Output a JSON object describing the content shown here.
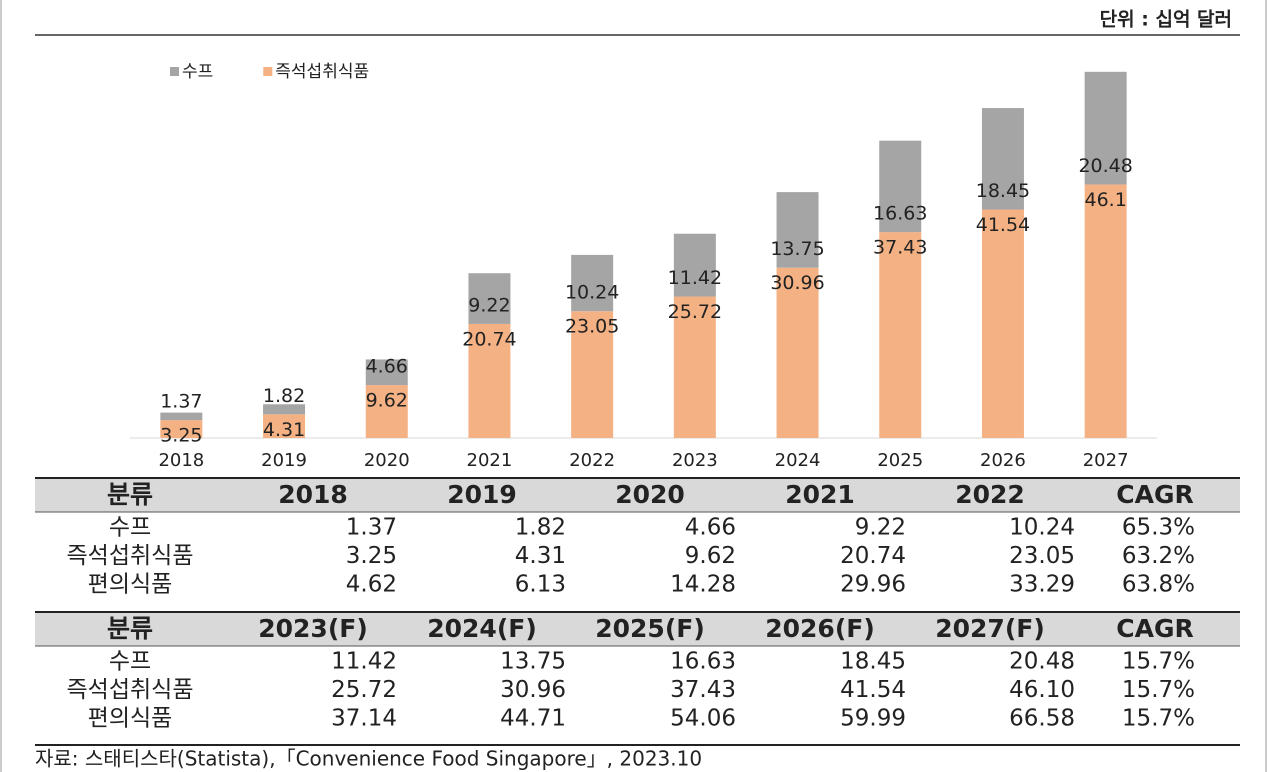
{
  "unit": "단위 : 십억 달러",
  "chart_data": {
    "type": "bar",
    "stacked": true,
    "categories": [
      "2018",
      "2019",
      "2020",
      "2021",
      "2022",
      "2023",
      "2024",
      "2025",
      "2026",
      "2027"
    ],
    "series": [
      {
        "name": "수프",
        "color": "#a5a5a5",
        "values": [
          1.37,
          1.82,
          4.66,
          9.22,
          10.24,
          11.42,
          13.75,
          16.63,
          18.45,
          20.48
        ]
      },
      {
        "name": "즉석섭취식품",
        "color": "#f4b183",
        "values": [
          3.25,
          4.31,
          9.62,
          20.74,
          23.05,
          25.72,
          30.96,
          37.43,
          41.54,
          46.1
        ]
      }
    ],
    "ylim": [
      0,
      70
    ],
    "legend": "top-left"
  },
  "table": {
    "sections": [
      {
        "header": [
          "분류",
          "2018",
          "2019",
          "2020",
          "2021",
          "2022",
          "CAGR"
        ],
        "rows": [
          [
            "수프",
            "1.37",
            "1.82",
            "4.66",
            "9.22",
            "10.24",
            "65.3%"
          ],
          [
            "즉석섭취식품",
            "3.25",
            "4.31",
            "9.62",
            "20.74",
            "23.05",
            "63.2%"
          ],
          [
            "편의식품",
            "4.62",
            "6.13",
            "14.28",
            "29.96",
            "33.29",
            "63.8%"
          ]
        ]
      },
      {
        "header": [
          "분류",
          "2023(F)",
          "2024(F)",
          "2025(F)",
          "2026(F)",
          "2027(F)",
          "CAGR"
        ],
        "rows": [
          [
            "수프",
            "11.42",
            "13.75",
            "16.63",
            "18.45",
            "20.48",
            "15.7%"
          ],
          [
            "즉석섭취식품",
            "25.72",
            "30.96",
            "37.43",
            "41.54",
            "46.10",
            "15.7%"
          ],
          [
            "편의식품",
            "37.14",
            "44.71",
            "54.06",
            "59.99",
            "66.58",
            "15.7%"
          ]
        ]
      }
    ]
  },
  "source": "자료: 스태티스타(Statista),「Convenience Food Singapore」, 2023.10"
}
